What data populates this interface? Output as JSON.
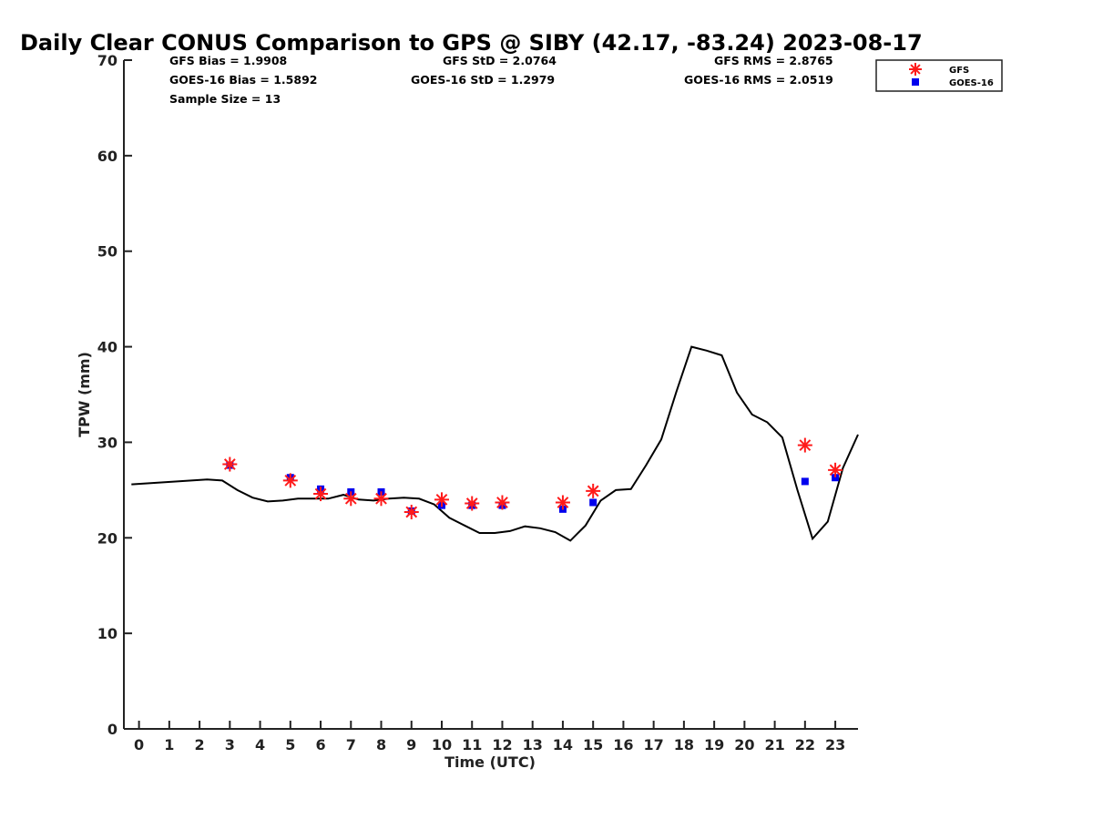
{
  "chart_data": {
    "type": "scatter",
    "title": "Daily Clear CONUS Comparison to GPS @ SIBY (42.17, -83.24) 2023-08-17",
    "xlabel": "Time (UTC)",
    "ylabel": "TPW (mm)",
    "xlim": [
      -0.5,
      23.75
    ],
    "ylim": [
      0,
      70
    ],
    "x_ticks": [
      "0",
      "1",
      "2",
      "3",
      "4",
      "5",
      "6",
      "7",
      "8",
      "9",
      "10",
      "11",
      "12",
      "13",
      "14",
      "15",
      "16",
      "17",
      "18",
      "19",
      "20",
      "21",
      "22",
      "23"
    ],
    "y_ticks": [
      "0",
      "10",
      "20",
      "30",
      "40",
      "50",
      "60",
      "70"
    ],
    "grid": false,
    "legend_position": "top-right",
    "stats": {
      "gfs_bias": "GFS Bias = 1.9908",
      "goes_bias": "GOES-16 Bias = 1.5892",
      "sample_size": "Sample Size = 13",
      "gfs_std": "GFS StD = 2.0764",
      "goes_std": "GOES-16 StD = 1.2979",
      "gfs_rms": "GFS RMS = 2.8765",
      "goes_rms": "GOES-16 RMS = 2.0519"
    },
    "series": [
      {
        "name": "GFS",
        "marker": "asterisk",
        "color": "#ff1a1a",
        "points": [
          [
            3,
            27.7
          ],
          [
            5,
            26.0
          ],
          [
            6,
            24.6
          ],
          [
            7,
            24.1
          ],
          [
            8,
            24.1
          ],
          [
            9,
            22.7
          ],
          [
            10,
            24.0
          ],
          [
            11,
            23.6
          ],
          [
            12,
            23.7
          ],
          [
            14,
            23.7
          ],
          [
            15,
            24.9
          ],
          [
            22,
            29.7
          ],
          [
            23,
            27.1
          ]
        ]
      },
      {
        "name": "GOES-16",
        "marker": "square",
        "color": "#0000ee",
        "points": [
          [
            3,
            27.6
          ],
          [
            5,
            26.3
          ],
          [
            6,
            25.1
          ],
          [
            7,
            24.8
          ],
          [
            8,
            24.8
          ],
          [
            9,
            22.8
          ],
          [
            10,
            23.4
          ],
          [
            11,
            23.4
          ],
          [
            12,
            23.4
          ],
          [
            14,
            23.0
          ],
          [
            15,
            23.7
          ],
          [
            22,
            25.9
          ],
          [
            23,
            26.3
          ]
        ]
      },
      {
        "name": "GPS",
        "marker": "line",
        "color": "#000000",
        "points": [
          [
            -0.25,
            25.6
          ],
          [
            2.25,
            26.1
          ],
          [
            2.75,
            26.0
          ],
          [
            3.25,
            25.0
          ],
          [
            3.75,
            24.2
          ],
          [
            4.25,
            23.8
          ],
          [
            4.75,
            23.9
          ],
          [
            5.25,
            24.1
          ],
          [
            5.75,
            24.1
          ],
          [
            6.25,
            24.1
          ],
          [
            6.75,
            24.5
          ],
          [
            7.25,
            24.0
          ],
          [
            7.75,
            23.9
          ],
          [
            8.25,
            24.1
          ],
          [
            8.75,
            24.2
          ],
          [
            9.25,
            24.1
          ],
          [
            9.75,
            23.5
          ],
          [
            10.25,
            22.1
          ],
          [
            10.75,
            21.3
          ],
          [
            11.25,
            20.5
          ],
          [
            11.75,
            20.5
          ],
          [
            12.25,
            20.7
          ],
          [
            12.75,
            21.2
          ],
          [
            13.25,
            21.0
          ],
          [
            13.75,
            20.6
          ],
          [
            14.25,
            19.7
          ],
          [
            14.75,
            21.3
          ],
          [
            15.25,
            23.9
          ],
          [
            15.75,
            25.0
          ],
          [
            16.25,
            25.1
          ],
          [
            16.75,
            27.6
          ],
          [
            17.25,
            30.3
          ],
          [
            17.75,
            35.3
          ],
          [
            18.25,
            40.0
          ],
          [
            18.75,
            39.6
          ],
          [
            19.25,
            39.1
          ],
          [
            19.75,
            35.2
          ],
          [
            20.25,
            32.9
          ],
          [
            20.75,
            32.1
          ],
          [
            21.25,
            30.5
          ],
          [
            21.75,
            25.0
          ],
          [
            22.25,
            19.9
          ],
          [
            22.75,
            21.7
          ],
          [
            23.25,
            27.3
          ],
          [
            23.75,
            30.8
          ]
        ]
      }
    ]
  }
}
